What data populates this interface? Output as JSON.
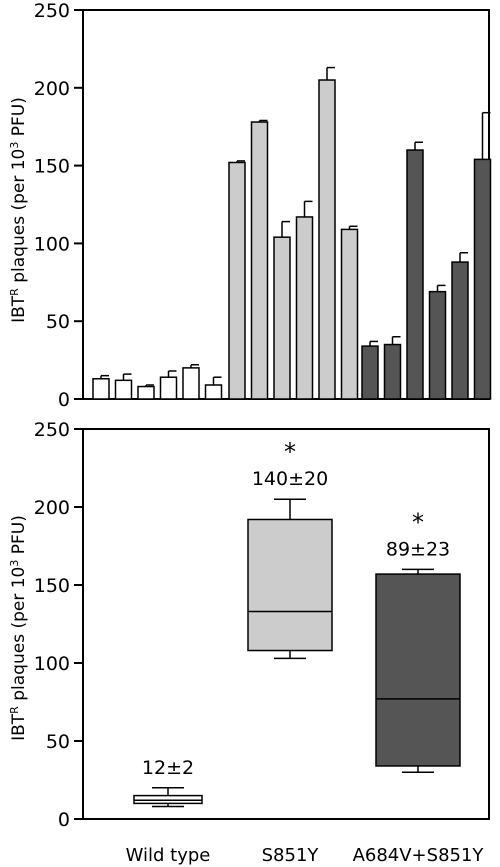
{
  "chart_data": [
    {
      "type": "bar",
      "ylabel_main": "IBT",
      "ylabel_sup1": "R",
      "ylabel_mid": " plaques (per 10",
      "ylabel_sup2": "3",
      "ylabel_end": " PFU)",
      "ylim": [
        0,
        250
      ],
      "yticks": [
        "0",
        "50",
        "100",
        "150",
        "200",
        "250"
      ],
      "grid": false,
      "groups": [
        {
          "color": "#ffffff",
          "values": [
            13,
            12,
            8,
            14,
            20,
            9
          ],
          "errors": [
            2,
            4,
            1,
            4,
            2,
            5
          ]
        },
        {
          "color": "#cccccc",
          "values": [
            152,
            178,
            104,
            117,
            205,
            109
          ],
          "errors": [
            1,
            1,
            10,
            10,
            8,
            2
          ]
        },
        {
          "color": "#555555",
          "values": [
            34,
            35,
            160,
            69,
            88,
            154
          ],
          "errors": [
            3,
            5,
            5,
            4,
            6,
            30
          ]
        }
      ]
    },
    {
      "type": "box",
      "ylabel_main": "IBT",
      "ylabel_sup1": "R",
      "ylabel_mid": " plaques (per 10",
      "ylabel_sup2": "3",
      "ylabel_end": " PFU)",
      "ylim": [
        0,
        250
      ],
      "yticks": [
        "0",
        "50",
        "100",
        "150",
        "200",
        "250"
      ],
      "categories": [
        "Wild type",
        "S851Y",
        "A684V+S851Y"
      ],
      "boxes": [
        {
          "color": "#ffffff",
          "whisker_low": 8,
          "q1": 10,
          "median": 12,
          "q3": 15,
          "whisker_high": 20,
          "annotation": "12±2",
          "star": ""
        },
        {
          "color": "#cccccc",
          "whisker_low": 103,
          "q1": 108,
          "median": 133,
          "q3": 192,
          "whisker_high": 205,
          "annotation": "140±20",
          "star": "*"
        },
        {
          "color": "#555555",
          "whisker_low": 30,
          "q1": 34,
          "median": 77,
          "q3": 157,
          "whisker_high": 160,
          "annotation": "89±23",
          "star": "*"
        }
      ]
    }
  ]
}
